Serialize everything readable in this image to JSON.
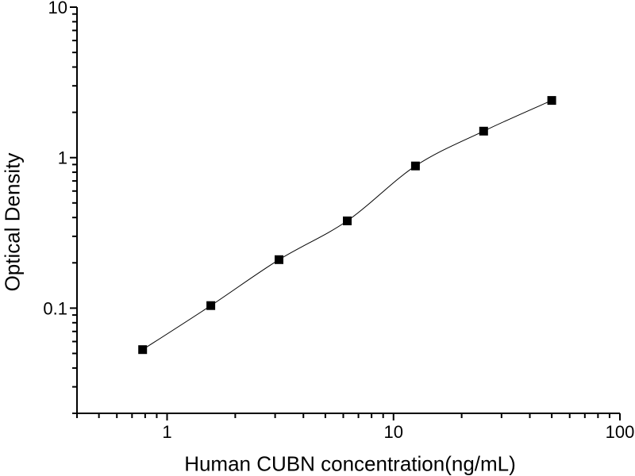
{
  "chart_data": {
    "type": "scatter",
    "title": "",
    "xlabel": "Human CUBN concentration(ng/mL)",
    "ylabel": "Optical Density",
    "x_scale": "log",
    "y_scale": "log",
    "xlim": [
      0.4,
      100
    ],
    "ylim": [
      0.02,
      10
    ],
    "grid": false,
    "legend": false,
    "x_ticks": [
      {
        "value": 1,
        "label": "1"
      },
      {
        "value": 10,
        "label": "10"
      },
      {
        "value": 100,
        "label": "100"
      }
    ],
    "y_ticks": [
      {
        "value": 0.1,
        "label": "0.1"
      },
      {
        "value": 1,
        "label": "1"
      },
      {
        "value": 10,
        "label": "10"
      }
    ],
    "series": [
      {
        "name": "standard-curve",
        "marker": "square",
        "color": "#000000",
        "x": [
          0.78,
          1.56,
          3.12,
          6.25,
          12.5,
          25,
          50
        ],
        "y": [
          0.053,
          0.104,
          0.21,
          0.38,
          0.88,
          1.5,
          2.4
        ]
      }
    ]
  },
  "colors": {
    "background": "#ffffff",
    "axis": "#000000",
    "text": "#000000"
  }
}
